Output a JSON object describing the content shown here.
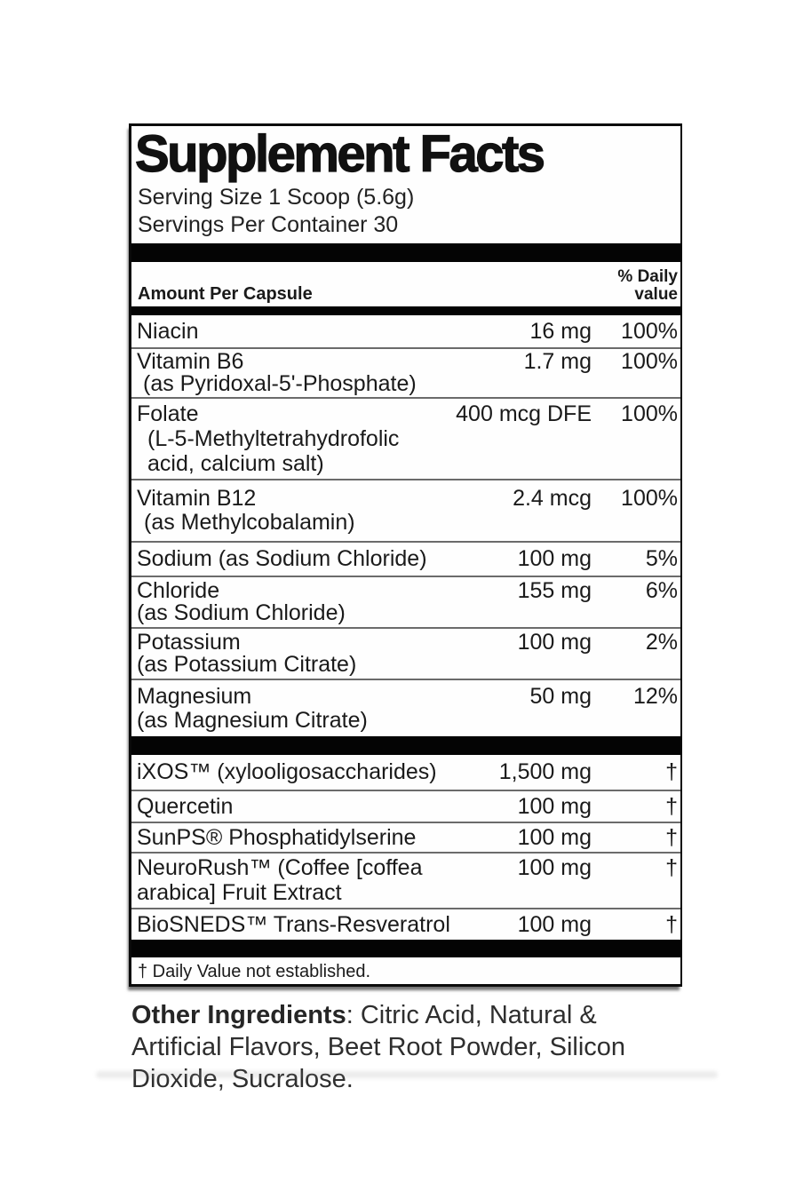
{
  "label": {
    "title": "Supplement Facts",
    "serving_size": "Serving Size 1 Scoop (5.6g)",
    "servings_per_container": "Servings Per Container 30",
    "header": {
      "amount_col": "Amount Per Capsule",
      "dv_line1": "% Daily",
      "dv_line2": "value"
    },
    "rows": [
      {
        "name": "Niacin",
        "amount": "16 mg",
        "dv": "100%",
        "subs": []
      },
      {
        "name": "Vitamin B6",
        "amount": "1.7 mg",
        "dv": "100%",
        "subs": [
          "(as Pyridoxal-5'-Phosphate)"
        ]
      },
      {
        "name": "Folate",
        "amount": "400 mcg DFE",
        "dv": "100%",
        "subs": [
          "(L-5-Methyltetrahydrofolic",
          "acid, calcium salt)"
        ]
      },
      {
        "name": "Vitamin B12",
        "amount": "2.4 mcg",
        "dv": "100%",
        "subs": [
          "(as Methylcobalamin)"
        ]
      },
      {
        "name": "Sodium (as Sodium Chloride)",
        "amount": "100 mg",
        "dv": "5%",
        "subs": []
      },
      {
        "name": "Chloride",
        "amount": "155 mg",
        "dv": "6%",
        "subs": [
          "(as Sodium Chloride)"
        ]
      },
      {
        "name": "Potassium",
        "amount": "100 mg",
        "dv": "2%",
        "subs": [
          "(as Potassium Citrate)"
        ]
      },
      {
        "name": "Magnesium",
        "amount": "50 mg",
        "dv": "12%",
        "subs": [
          "(as Magnesium Citrate)"
        ]
      },
      {
        "name": "iXOS™ (xylooligosaccharides)",
        "amount": "1,500 mg",
        "dv": "†",
        "subs": []
      },
      {
        "name": "Quercetin",
        "amount": "100 mg",
        "dv": "†",
        "subs": []
      },
      {
        "name": "SunPS® Phosphatidylserine",
        "amount": "100 mg",
        "dv": "†",
        "subs": []
      },
      {
        "name": "NeuroRush™ (Coffee [coffea",
        "amount": "100 mg",
        "dv": "†",
        "subs": [
          "arabica] Fruit Extract"
        ]
      },
      {
        "name": "BioSNEDS™ Trans-Resveratrol",
        "amount": "100 mg",
        "dv": "†",
        "subs": []
      }
    ],
    "footnote": "† Daily Value not established."
  },
  "other_ingredients": {
    "label": "Other Ingredients",
    "text": ": Citric Acid, Natural & Artificial Flavors, Beet Root Powder, Silicon Dioxide, Sucralose."
  },
  "colors": {
    "panel_border": "#0b0b0b",
    "separator_bar": "#040404",
    "row_divider": "#6b6b6b",
    "text": "#1a1a1a"
  }
}
